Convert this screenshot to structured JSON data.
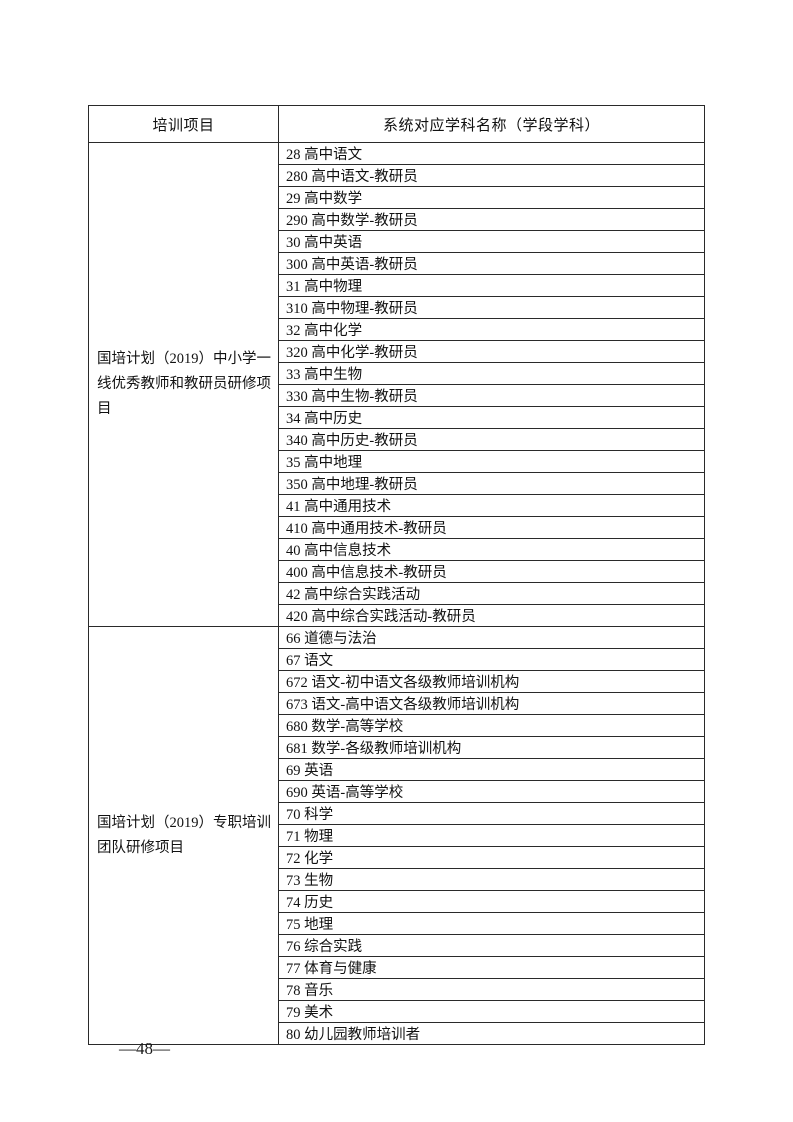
{
  "page": {
    "page_number": "—48—"
  },
  "table": {
    "headers": {
      "project": "培训项目",
      "subject": "系统对应学科名称（学段学科）"
    },
    "sections": [
      {
        "project": "国培计划（2019）中小学一线优秀教师和教研员研修项目",
        "rows": [
          "28 高中语文",
          "280 高中语文-教研员",
          "29 高中数学",
          "290 高中数学-教研员",
          "30 高中英语",
          "300 高中英语-教研员",
          "31 高中物理",
          "310 高中物理-教研员",
          "32 高中化学",
          "320 高中化学-教研员",
          "33 高中生物",
          "330 高中生物-教研员",
          "34 高中历史",
          "340 高中历史-教研员",
          "35 高中地理",
          "350 高中地理-教研员",
          "41 高中通用技术",
          "410 高中通用技术-教研员",
          "40 高中信息技术",
          "400 高中信息技术-教研员",
          "42 高中综合实践活动",
          "420 高中综合实践活动-教研员"
        ]
      },
      {
        "project": "国培计划（2019）专职培训团队研修项目",
        "rows": [
          "66 道德与法治",
          "67 语文",
          "672 语文-初中语文各级教师培训机构",
          "673 语文-高中语文各级教师培训机构",
          "680 数学-高等学校",
          "681 数学-各级教师培训机构",
          "69 英语",
          "690 英语-高等学校",
          "70 科学",
          "71 物理",
          "72 化学",
          "73 生物",
          "74 历史",
          "75 地理",
          "76 综合实践",
          "77 体育与健康",
          "78 音乐",
          "79 美术",
          "80 幼儿园教师培训者"
        ]
      }
    ]
  }
}
